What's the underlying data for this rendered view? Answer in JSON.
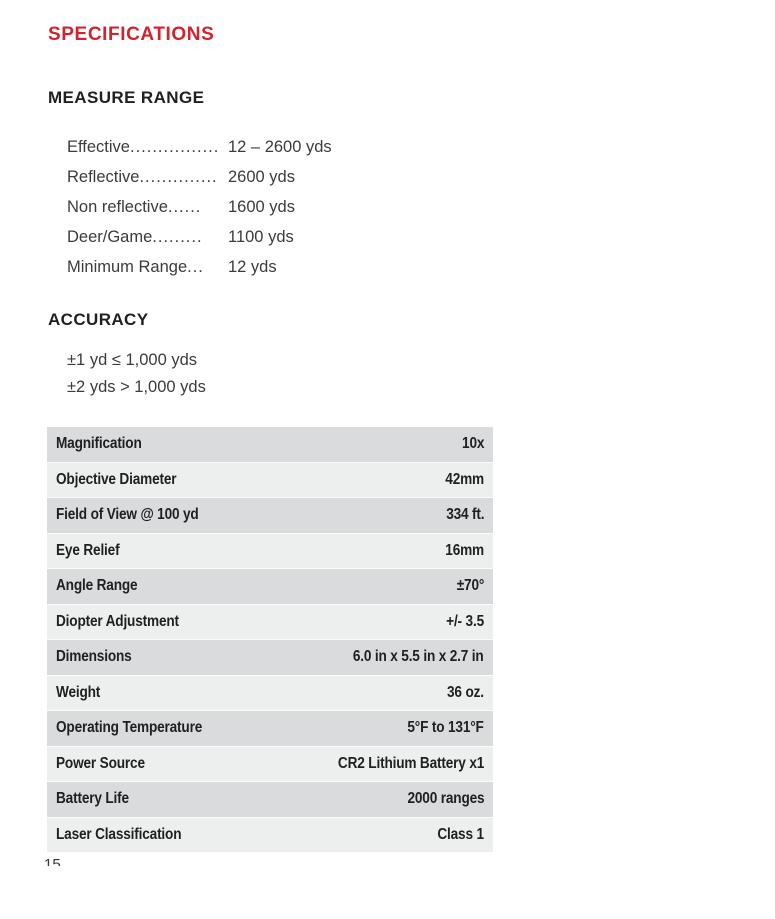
{
  "colors": {
    "accent": "#d2232f",
    "heading_text": "#231f20",
    "body_text": "#3c3c3c",
    "table_text": "#1e2022",
    "row_dark": "#d9dbdc",
    "row_light": "#edefee",
    "page_bg": "#ffffff"
  },
  "page": {
    "title": "SPECIFICATIONS",
    "page_number": "15"
  },
  "measure_range": {
    "heading": "MEASURE RANGE",
    "items": [
      {
        "label": "Effective",
        "dots": "................",
        "value": "12 – 2600 yds"
      },
      {
        "label": "Reflective",
        "dots": "..............",
        "value": "2600 yds"
      },
      {
        "label": "Non reflective",
        "dots": "......",
        "value": "1600 yds"
      },
      {
        "label": "Deer/Game",
        "dots": ".........",
        "value": "1100 yds"
      },
      {
        "label": "Minimum Range",
        "dots": "...",
        "value": "12 yds"
      }
    ]
  },
  "accuracy": {
    "heading": "ACCURACY",
    "lines": [
      "±1 yd ≤ 1,000 yds",
      "±2 yds > 1,000 yds"
    ]
  },
  "spec_table": {
    "rows": [
      {
        "label": "Magnification",
        "value": "10x"
      },
      {
        "label": "Objective Diameter",
        "value": "42mm"
      },
      {
        "label": "Field of View @ 100 yd",
        "value": "334 ft."
      },
      {
        "label": "Eye Relief",
        "value": "16mm"
      },
      {
        "label": "Angle Range",
        "value": "±70°"
      },
      {
        "label": "Diopter Adjustment",
        "value": "+/- 3.5"
      },
      {
        "label": "Dimensions",
        "value": "6.0 in x 5.5 in x 2.7 in"
      },
      {
        "label": "Weight",
        "value": "36 oz."
      },
      {
        "label": "Operating Temperature",
        "value": "5°F to 131°F"
      },
      {
        "label": "Power Source",
        "value": "CR2 Lithium Battery  x1"
      },
      {
        "label": "Battery Life",
        "value": "2000 ranges"
      },
      {
        "label": "Laser Classification",
        "value": "Class 1"
      }
    ]
  }
}
